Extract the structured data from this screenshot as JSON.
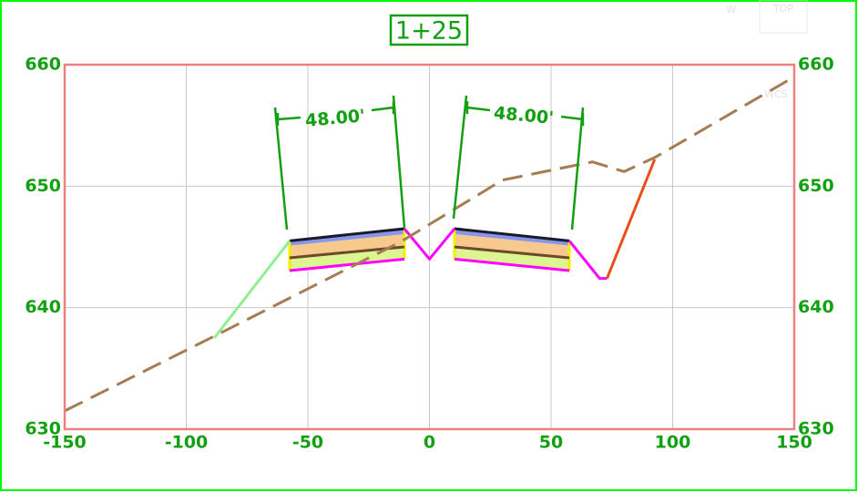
{
  "chart_data": {
    "type": "section",
    "title": "1+25",
    "xlim": [
      -150,
      150
    ],
    "ylim": [
      630,
      660
    ],
    "xticks": [
      -150,
      -100,
      -50,
      0,
      50,
      100,
      150
    ],
    "yticks": [
      630,
      640,
      650,
      660
    ],
    "grid": true,
    "series": [
      {
        "kind": "area",
        "color": "#8796e6",
        "x": [
          -57.5,
          -10.3
        ],
        "values": [
          645.5,
          646.5
        ],
        "base": [
          645.1,
          646.05
        ]
      },
      {
        "kind": "area",
        "color": "#f7c98f",
        "x": [
          -57.5,
          -10.3
        ],
        "values": [
          645.1,
          646.05
        ],
        "base": [
          644.1,
          645.0
        ]
      },
      {
        "kind": "area",
        "color": "#dcf590",
        "x": [
          -57.5,
          -10.3
        ],
        "values": [
          644.1,
          645.0
        ],
        "base": [
          643.05,
          644.0
        ]
      },
      {
        "kind": "area",
        "color": "#8796e6",
        "x": [
          10.3,
          57.5
        ],
        "values": [
          646.5,
          645.5
        ],
        "base": [
          646.05,
          645.1
        ]
      },
      {
        "kind": "area",
        "color": "#f7c98f",
        "x": [
          10.3,
          57.5
        ],
        "values": [
          646.05,
          645.1
        ],
        "base": [
          645.0,
          644.1
        ]
      },
      {
        "kind": "area",
        "color": "#dcf590",
        "x": [
          10.3,
          57.5
        ],
        "values": [
          645.0,
          644.1
        ],
        "base": [
          644.0,
          643.05
        ]
      },
      {
        "kind": "line",
        "color": "#1a1a2e",
        "x": [
          -57.5,
          -10.3
        ],
        "values": [
          645.5,
          646.5
        ]
      },
      {
        "kind": "line",
        "color": "#1a1a2e",
        "x": [
          10.3,
          57.5
        ],
        "values": [
          646.5,
          645.5
        ]
      },
      {
        "kind": "line",
        "color": "#6b4a2a",
        "x": [
          -57.5,
          -10.3
        ],
        "values": [
          644.1,
          645.0
        ]
      },
      {
        "kind": "line",
        "color": "#6b4a2a",
        "x": [
          10.3,
          57.5
        ],
        "values": [
          645.0,
          644.1
        ]
      },
      {
        "kind": "line",
        "color": "#ff00ff",
        "x": [
          -57.5,
          -10.3
        ],
        "values": [
          643.05,
          644.0
        ]
      },
      {
        "kind": "line",
        "color": "#ff00ff",
        "x": [
          10.3,
          57.5
        ],
        "values": [
          644.0,
          643.05
        ]
      },
      {
        "kind": "line",
        "color": "#ff00ff",
        "x": [
          -10.3,
          0,
          10.3
        ],
        "values": [
          646.5,
          644.0,
          646.5
        ]
      },
      {
        "kind": "line",
        "color": "#ff00ff",
        "x": [
          57.5,
          70,
          73
        ],
        "values": [
          645.5,
          642.4,
          642.4
        ]
      },
      {
        "kind": "line",
        "color": "#8ef08e",
        "x": [
          -88.5,
          -57.5
        ],
        "values": [
          637.5,
          645.5
        ]
      },
      {
        "kind": "line",
        "color": "#e8501a",
        "x": [
          73,
          92.6
        ],
        "values": [
          642.4,
          652.2
        ]
      },
      {
        "kind": "line",
        "color": "#a67c52",
        "dashed": true,
        "x": [
          -150,
          -88,
          -12,
          30,
          67,
          80,
          93,
          150
        ],
        "values": [
          631.5,
          637.7,
          645.4,
          650.5,
          652,
          651.2,
          652.4,
          659
        ]
      }
    ],
    "annotations": [
      "48.00'",
      "48.00'"
    ],
    "viewcube": [
      "W",
      "TOP",
      "WCS"
    ]
  }
}
